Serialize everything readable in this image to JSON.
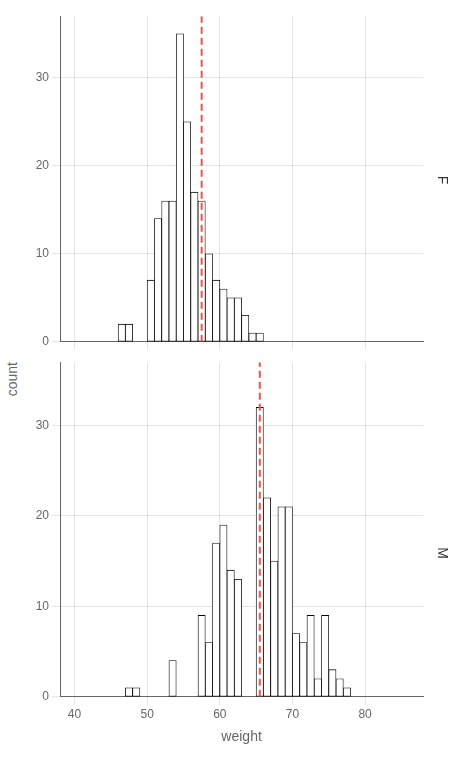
{
  "chart_data": [
    {
      "type": "histogram",
      "title": "F",
      "bins": [
        46,
        47,
        48,
        49,
        50,
        51,
        52,
        53,
        54,
        55,
        56,
        57,
        58,
        59,
        60,
        61,
        62,
        63,
        64,
        65,
        66
      ],
      "values": [
        2,
        2,
        0,
        0,
        7,
        14,
        16,
        16,
        35,
        25,
        17,
        16,
        10,
        7,
        6,
        5,
        5,
        3,
        1,
        1
      ],
      "color": "white",
      "vline": {
        "x": 57.5,
        "color": "#E8534A",
        "line_style": "dashed"
      },
      "xlim": [
        38,
        88
      ],
      "xticks": [
        40,
        50,
        60,
        70,
        80
      ],
      "ylim": [
        0,
        37
      ],
      "yticks": [
        0,
        10,
        20,
        30
      ],
      "ylabel": "count",
      "grid": true,
      "tick_labels": "y"
    },
    {
      "type": "histogram",
      "title": "M",
      "bins": [
        47,
        48,
        49,
        50,
        51,
        52,
        53,
        54,
        55,
        56,
        57,
        58,
        59,
        60,
        61,
        62,
        63,
        64,
        65,
        66,
        67,
        68,
        69,
        70,
        71,
        72,
        73,
        74,
        75,
        76,
        77,
        78
      ],
      "values": [
        1,
        1,
        0,
        0,
        0,
        0,
        4,
        0,
        0,
        0,
        9,
        6,
        17,
        19,
        14,
        13,
        0,
        0,
        32,
        22,
        15,
        21,
        21,
        7,
        6,
        9,
        2,
        9,
        3,
        2,
        1
      ],
      "color": "white",
      "vline": {
        "x": 65.5,
        "color": "#E8534A",
        "line_style": "dashed"
      },
      "xlim": [
        38,
        88
      ],
      "xticks": [
        40,
        50,
        60,
        70,
        80
      ],
      "ylim": [
        0,
        37
      ],
      "yticks": [
        0,
        10,
        20,
        30
      ],
      "xlabel": "weight",
      "grid": true
    }
  ]
}
